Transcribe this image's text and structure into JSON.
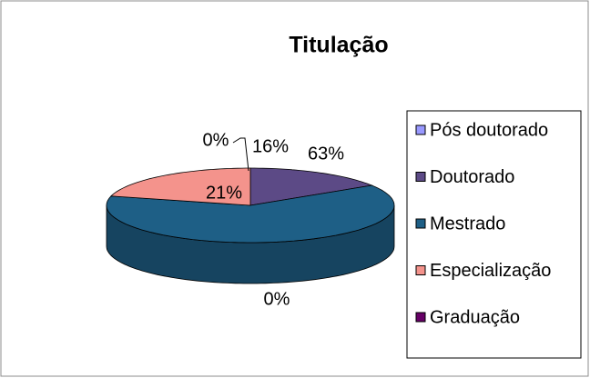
{
  "chart_data": {
    "type": "pie3d",
    "title": "Titulação",
    "categories": [
      "Pós doutorado",
      "Doutorado",
      "Mestrado",
      "Especialização",
      "Graduação"
    ],
    "values": [
      0,
      16,
      63,
      21,
      0
    ],
    "value_labels": [
      "0%",
      "16%",
      "63%",
      "21%",
      "0%"
    ],
    "colors": [
      "#9999ff",
      "#5c4a86",
      "#1e5f86",
      "#f4938c",
      "#660066"
    ],
    "legend": "right"
  }
}
